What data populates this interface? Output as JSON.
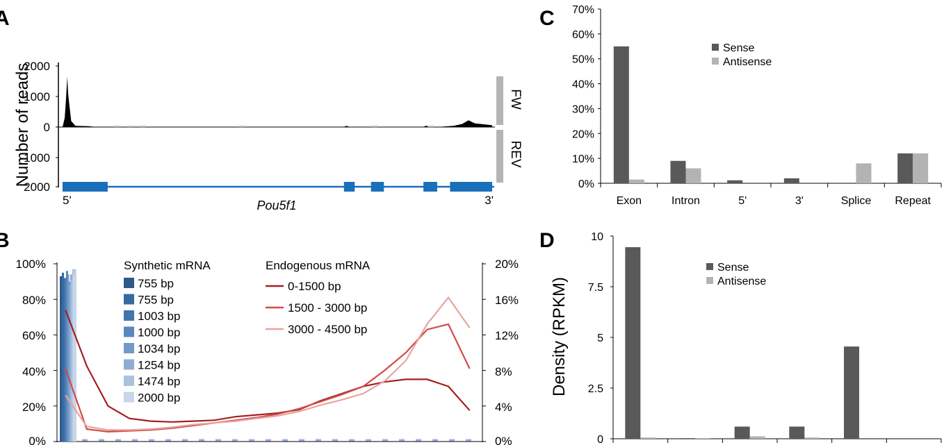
{
  "panels": {
    "A": {
      "label": "A",
      "ylabel": "Number of reads",
      "yticks_top": [
        "2000",
        "1000",
        "0"
      ],
      "yticks_bottom": [
        "1000",
        "2000"
      ],
      "strand_fw": "FW",
      "strand_rev": "REV",
      "gene_name": "Pou5f1",
      "five_prime": "5'",
      "three_prime": "3'",
      "colors": {
        "coverage": "#000000",
        "gene": "#1a6fba",
        "strand_bar": "#b4b4b4"
      },
      "chart_data": {
        "type": "area",
        "ylim": [
          0,
          2000
        ],
        "peaks": [
          {
            "pos": 0.0,
            "value": 0
          },
          {
            "pos": 0.005,
            "value": 300
          },
          {
            "pos": 0.008,
            "value": 900
          },
          {
            "pos": 0.011,
            "value": 1650
          },
          {
            "pos": 0.013,
            "value": 1100
          },
          {
            "pos": 0.016,
            "value": 700
          },
          {
            "pos": 0.02,
            "value": 200
          },
          {
            "pos": 0.03,
            "value": 40
          },
          {
            "pos": 0.06,
            "value": 30
          },
          {
            "pos": 0.08,
            "value": 0
          },
          {
            "pos": 0.655,
            "value": 0
          },
          {
            "pos": 0.66,
            "value": 40
          },
          {
            "pos": 0.67,
            "value": 0
          },
          {
            "pos": 0.84,
            "value": 0
          },
          {
            "pos": 0.845,
            "value": 40
          },
          {
            "pos": 0.87,
            "value": 0
          },
          {
            "pos": 0.91,
            "value": 40
          },
          {
            "pos": 0.93,
            "value": 100
          },
          {
            "pos": 0.945,
            "value": 220
          },
          {
            "pos": 0.96,
            "value": 120
          },
          {
            "pos": 0.98,
            "value": 90
          },
          {
            "pos": 1.0,
            "value": 60
          }
        ],
        "exons": [
          [
            0.0,
            0.105
          ],
          [
            0.655,
            0.68
          ],
          [
            0.718,
            0.748
          ],
          [
            0.84,
            0.872
          ],
          [
            0.902,
            1.0
          ]
        ]
      }
    },
    "B": {
      "label": "B",
      "left_ticks": [
        "100%",
        "80%",
        "60%",
        "40%",
        "20%",
        "0%"
      ],
      "right_ticks": [
        "20%",
        "16%",
        "12%",
        "8%",
        "4%",
        "0%"
      ],
      "synthetic_title": "Synthetic mRNA",
      "endogenous_title": "Endogenous mRNA",
      "synthetic_legend": [
        {
          "label": "755 bp",
          "color": "#2e5a8c"
        },
        {
          "label": "755 bp",
          "color": "#3a68a0"
        },
        {
          "label": "1003 bp",
          "color": "#4474ac"
        },
        {
          "label": "1000 bp",
          "color": "#5a87be"
        },
        {
          "label": "1034 bp",
          "color": "#7399c9"
        },
        {
          "label": "1254 bp",
          "color": "#8eadd4"
        },
        {
          "label": "1474 bp",
          "color": "#aac1df"
        },
        {
          "label": "2000 bp",
          "color": "#c7d6ea"
        }
      ],
      "endogenous_legend": [
        {
          "label": "0-1500 bp",
          "color": "#a31f22"
        },
        {
          "label": "1500 - 3000 bp",
          "color": "#cf4b48"
        },
        {
          "label": "3000 - 4500 bp",
          "color": "#e8a3a0"
        }
      ],
      "chart_data": {
        "type": "line",
        "x": [
          0.02,
          0.07,
          0.12,
          0.17,
          0.22,
          0.27,
          0.32,
          0.37,
          0.42,
          0.47,
          0.52,
          0.57,
          0.62,
          0.67,
          0.72,
          0.77,
          0.82,
          0.87,
          0.92,
          0.97
        ],
        "ylim_left": [
          0,
          100
        ],
        "ylim_right": [
          0,
          20
        ],
        "series": [
          {
            "name": "0-1500 bp",
            "color": "#a31f22",
            "values": [
              14.8,
              8.5,
              4.0,
              2.6,
              2.3,
              2.2,
              2.3,
              2.4,
              2.8,
              3.0,
              3.2,
              3.6,
              4.6,
              5.4,
              6.2,
              6.7,
              7.0,
              7.0,
              6.2,
              3.5
            ]
          },
          {
            "name": "1500 - 3000 bp",
            "color": "#cf4b48",
            "values": [
              8.2,
              1.4,
              1.1,
              1.2,
              1.3,
              1.5,
              1.8,
              2.1,
              2.4,
              2.7,
              3.1,
              3.7,
              4.5,
              5.3,
              6.2,
              8.0,
              10.0,
              12.6,
              13.2,
              8.2
            ]
          },
          {
            "name": "3000 - 4500 bp",
            "color": "#e8a3a0",
            "values": [
              5.2,
              1.7,
              1.3,
              1.3,
              1.4,
              1.6,
              1.9,
              2.1,
              2.3,
              2.6,
              2.9,
              3.4,
              4.1,
              4.7,
              5.4,
              6.8,
              9.1,
              13.2,
              16.2,
              12.8
            ]
          }
        ],
        "synthetic_peak_values": [
          93,
          95,
          92,
          96,
          90,
          94,
          97,
          97
        ]
      }
    },
    "C": {
      "label": "C",
      "legend": [
        {
          "label": "Sense",
          "color": "#595959"
        },
        {
          "label": "Antisense",
          "color": "#b3b3b3"
        }
      ],
      "chart_data": {
        "type": "bar",
        "categories": [
          "Exon",
          "Intron",
          "5'",
          "3'",
          "Splice",
          "Repeat"
        ],
        "yticks": [
          "0%",
          "10%",
          "20%",
          "30%",
          "40%",
          "50%",
          "60%",
          "70%"
        ],
        "ylim": [
          0,
          70
        ],
        "series": [
          {
            "name": "Sense",
            "values": [
              55,
              9,
              1.2,
              2,
              0,
              12
            ]
          },
          {
            "name": "Antisense",
            "values": [
              1.5,
              6,
              0,
              0,
              8,
              12
            ]
          }
        ]
      }
    },
    "D": {
      "label": "D",
      "ylabel": "Density (RPKM)",
      "legend": [
        {
          "label": "Sense",
          "color": "#595959"
        },
        {
          "label": "Antisense",
          "color": "#b3b3b3"
        }
      ],
      "chart_data": {
        "type": "bar",
        "yticks": [
          "0",
          "2.5",
          "5",
          "7.5",
          "10"
        ],
        "ylim": [
          0,
          10
        ],
        "series": [
          {
            "name": "Sense",
            "values": [
              9.45,
              0.03,
              0.6,
              0.6,
              4.55,
              0
            ]
          },
          {
            "name": "Antisense",
            "values": [
              0.06,
              0.03,
              0.12,
              0.06,
              0,
              0
            ]
          }
        ]
      }
    }
  }
}
